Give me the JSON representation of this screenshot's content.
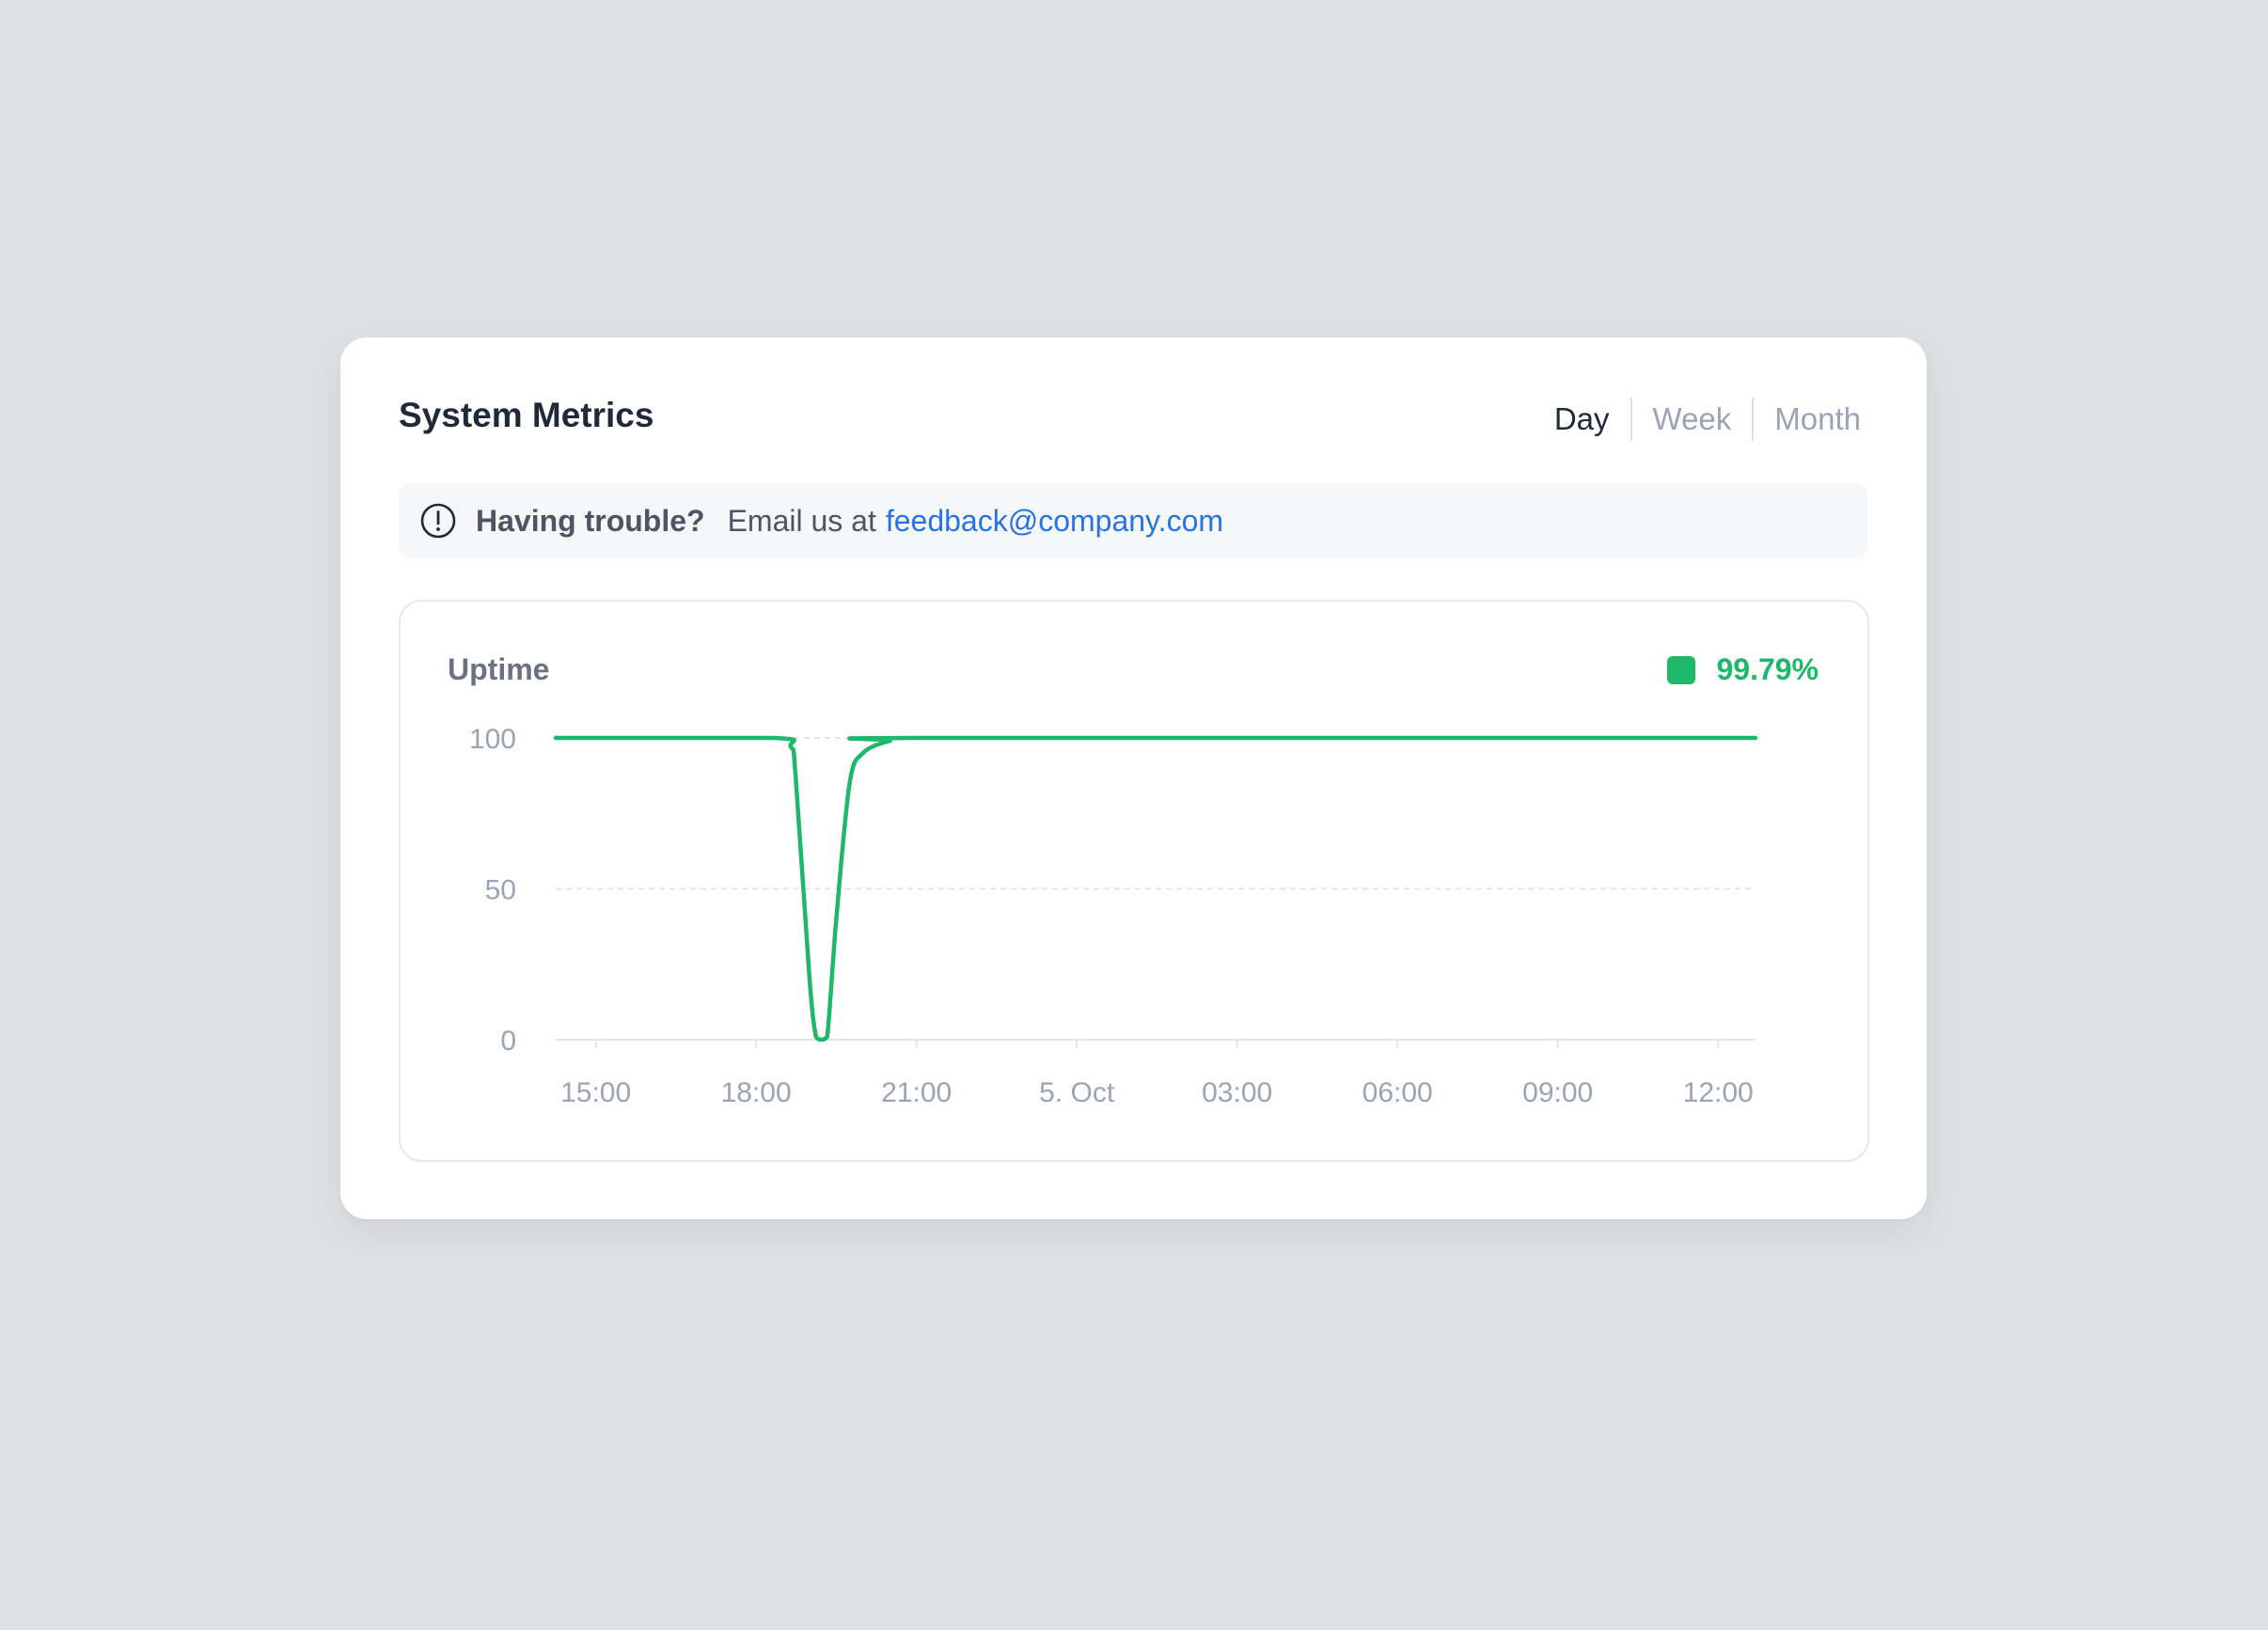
{
  "header": {
    "title": "System Metrics",
    "tabs": [
      {
        "label": "Day",
        "active": true
      },
      {
        "label": "Week",
        "active": false
      },
      {
        "label": "Month",
        "active": false
      }
    ]
  },
  "banner": {
    "icon": "alert-circle-icon",
    "strong": "Having trouble?",
    "message": "Email us at",
    "email": "feedback@company.com"
  },
  "uptime": {
    "label": "Uptime",
    "value": "99.79%",
    "color": "#1db86a"
  },
  "chart_data": {
    "type": "line",
    "ylim": [
      0,
      100
    ],
    "yticks": [
      0,
      50,
      100
    ],
    "xticks": [
      {
        "x": 0,
        "label": "15:00"
      },
      {
        "x": 3,
        "label": "18:00"
      },
      {
        "x": 6,
        "label": "21:00"
      },
      {
        "x": 9,
        "label": "5. Oct"
      },
      {
        "x": 12,
        "label": "03:00"
      },
      {
        "x": 15,
        "label": "06:00"
      },
      {
        "x": 18,
        "label": "09:00"
      },
      {
        "x": 21,
        "label": "12:00"
      }
    ],
    "xlim": [
      -0.75,
      21.7
    ],
    "grid": true,
    "series": [
      {
        "color": "#1db86a",
        "points": [
          [
            -0.75,
            100
          ],
          [
            3.3,
            100
          ],
          [
            3.65,
            97
          ],
          [
            3.74,
            87
          ],
          [
            4.0,
            20
          ],
          [
            4.12,
            1
          ],
          [
            4.22,
            0
          ],
          [
            4.33,
            1
          ],
          [
            4.5,
            40
          ],
          [
            4.75,
            85
          ],
          [
            5.0,
            95
          ],
          [
            5.5,
            99
          ],
          [
            6.0,
            100
          ],
          [
            21.7,
            100
          ]
        ]
      }
    ]
  }
}
